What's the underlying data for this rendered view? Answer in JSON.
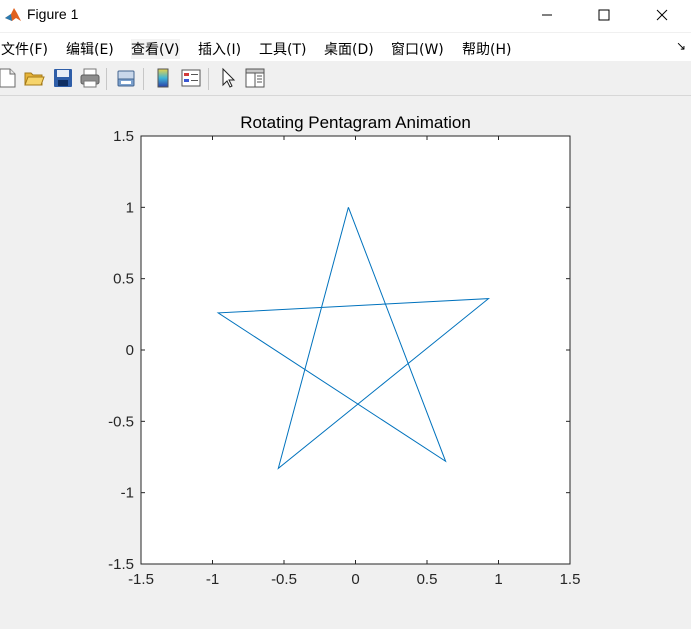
{
  "window": {
    "title": "Figure 1",
    "controls": {
      "minimize": "—",
      "maximize": "☐",
      "close": "✕"
    }
  },
  "menu": {
    "items": [
      {
        "label": "文件(F)"
      },
      {
        "label": "编辑(E)"
      },
      {
        "label": "查看(V)"
      },
      {
        "label": "插入(I)"
      },
      {
        "label": "工具(T)"
      },
      {
        "label": "桌面(D)"
      },
      {
        "label": "窗口(W)"
      },
      {
        "label": "帮助(H)"
      }
    ],
    "overflow_icon": "↘"
  },
  "toolbar": {
    "buttons": [
      "new-figure-icon",
      "open-file-icon",
      "save-icon",
      "print-icon",
      "link-plot-icon",
      "colorbar-icon",
      "legend-icon",
      "pointer-icon",
      "property-editor-icon"
    ]
  },
  "plot": {
    "title": "Rotating Pentagram Animation",
    "line_color": "#0072bd",
    "chart_data": {
      "type": "line",
      "title": "Rotating Pentagram Animation",
      "xlim": [
        -1.5,
        1.5
      ],
      "ylim": [
        -1.5,
        1.5
      ],
      "xticks": [
        -1.5,
        -1,
        -0.5,
        0,
        0.5,
        1,
        1.5
      ],
      "yticks": [
        -1.5,
        -1,
        -0.5,
        0,
        0.5,
        1,
        1.5
      ],
      "xtick_labels": [
        "-1.5",
        "-1",
        "-0.5",
        "0",
        "0.5",
        "1",
        "1.5"
      ],
      "ytick_labels": [
        "-1.5",
        "-1",
        "-0.5",
        "0",
        "0.5",
        "1",
        "1.5"
      ],
      "grid": false,
      "series": [
        {
          "x": [
            -0.05,
            0.63,
            -0.96,
            0.93,
            -0.54,
            -0.05
          ],
          "y": [
            1.0,
            -0.78,
            0.26,
            0.36,
            -0.83,
            1.0
          ]
        }
      ]
    }
  }
}
